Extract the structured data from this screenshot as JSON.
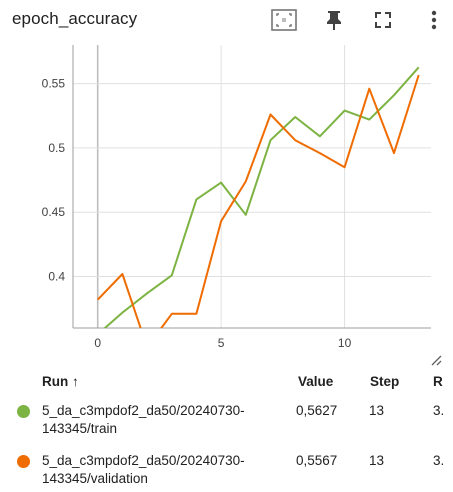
{
  "header": {
    "title": "epoch_accuracy",
    "icons": [
      "fit-to-data-icon",
      "pin-icon",
      "fullscreen-icon",
      "more-vert-icon"
    ]
  },
  "chart_data": {
    "type": "line",
    "title": "epoch_accuracy",
    "xlabel": "",
    "ylabel": "",
    "xlim": [
      -1.0,
      13.5
    ],
    "ylim": [
      0.36,
      0.58
    ],
    "x_ticks": [
      0,
      5,
      10
    ],
    "y_ticks": [
      0.4,
      0.45,
      0.5,
      0.55
    ],
    "x_tick_labels": [
      "0",
      "5",
      "10"
    ],
    "y_tick_labels": [
      "0.4",
      "0.45",
      "0.5",
      "0.55"
    ],
    "grid": true,
    "series": [
      {
        "name": "5_da_c3mpdof2_da50/20240730-143345/train",
        "color": "#7cb342",
        "x": [
          0,
          1,
          2,
          3,
          4,
          5,
          6,
          7,
          8,
          9,
          10,
          11,
          12,
          13
        ],
        "y": [
          0.355,
          0.372,
          0.387,
          0.401,
          0.46,
          0.473,
          0.448,
          0.506,
          0.524,
          0.509,
          0.529,
          0.522,
          0.541,
          0.5627
        ]
      },
      {
        "name": "5_da_c3mpdof2_da50/20240730-143345/validation",
        "color": "#ef6c00",
        "x": [
          0,
          1,
          2,
          3,
          4,
          5,
          6,
          7,
          8,
          9,
          10,
          11,
          12,
          13
        ],
        "y": [
          0.382,
          0.402,
          0.345,
          0.371,
          0.371,
          0.443,
          0.474,
          0.526,
          0.506,
          0.496,
          0.485,
          0.546,
          0.496,
          0.5567
        ]
      }
    ]
  },
  "table": {
    "headers": {
      "run": "Run ↑",
      "value": "Value",
      "step": "Step",
      "relative": "R"
    },
    "rows": [
      {
        "run": "5_da_c3mpdof2_da50/20240730-143345/train",
        "color": "#7cb342",
        "value": "0,5627",
        "step": "13",
        "relative": "3."
      },
      {
        "run": "5_da_c3mpdof2_da50/20240730-143345/validation",
        "color": "#ef6c00",
        "value": "0,5567",
        "step": "13",
        "relative": "3."
      }
    ]
  }
}
